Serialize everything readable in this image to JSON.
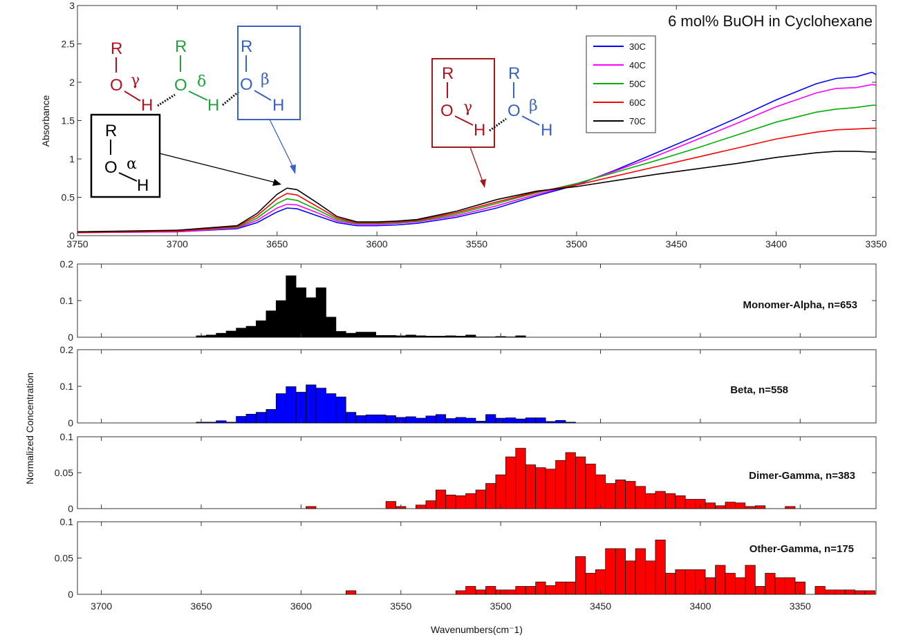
{
  "chart_data": [
    {
      "type": "line",
      "title": "6 mol% BuOH in Cyclohexane",
      "xlabel": "",
      "ylabel": "Absorbance",
      "xlim": [
        3750,
        3350
      ],
      "ylim": [
        0,
        3
      ],
      "x_ticks": [
        "3750",
        "3700",
        "3650",
        "3600",
        "3550",
        "3500",
        "3450",
        "3400",
        "3350"
      ],
      "y_ticks": [
        "0",
        "0.5",
        "1",
        "1.5",
        "2",
        "2.5",
        "3"
      ],
      "legend": [
        "30C",
        "40C",
        "50C",
        "60C",
        "70C"
      ],
      "series": [
        {
          "name": "30C",
          "color": "#0000ff",
          "x": [
            3750,
            3700,
            3670,
            3660,
            3650,
            3645,
            3640,
            3630,
            3620,
            3610,
            3600,
            3590,
            3580,
            3560,
            3540,
            3520,
            3500,
            3480,
            3460,
            3440,
            3420,
            3400,
            3380,
            3370,
            3360,
            3352,
            3350
          ],
          "y": [
            0.04,
            0.05,
            0.09,
            0.17,
            0.31,
            0.36,
            0.35,
            0.26,
            0.17,
            0.13,
            0.13,
            0.14,
            0.16,
            0.24,
            0.36,
            0.52,
            0.66,
            0.86,
            1.08,
            1.3,
            1.53,
            1.77,
            1.98,
            2.05,
            2.07,
            2.13,
            2.1
          ]
        },
        {
          "name": "40C",
          "color": "#ff00ff",
          "x": [
            3750,
            3700,
            3670,
            3660,
            3650,
            3645,
            3640,
            3630,
            3620,
            3610,
            3600,
            3590,
            3580,
            3560,
            3540,
            3520,
            3500,
            3480,
            3460,
            3440,
            3420,
            3400,
            3380,
            3370,
            3360,
            3352,
            3350
          ],
          "y": [
            0.04,
            0.05,
            0.1,
            0.2,
            0.36,
            0.41,
            0.4,
            0.3,
            0.19,
            0.15,
            0.15,
            0.16,
            0.18,
            0.26,
            0.39,
            0.54,
            0.67,
            0.85,
            1.04,
            1.25,
            1.46,
            1.68,
            1.86,
            1.92,
            1.93,
            1.97,
            1.96
          ]
        },
        {
          "name": "50C",
          "color": "#00b000",
          "x": [
            3750,
            3700,
            3670,
            3660,
            3650,
            3645,
            3640,
            3630,
            3620,
            3610,
            3600,
            3590,
            3580,
            3560,
            3540,
            3520,
            3500,
            3480,
            3460,
            3440,
            3420,
            3400,
            3380,
            3370,
            3360,
            3352,
            3350
          ],
          "y": [
            0.04,
            0.06,
            0.11,
            0.23,
            0.42,
            0.48,
            0.46,
            0.34,
            0.21,
            0.16,
            0.16,
            0.17,
            0.19,
            0.28,
            0.42,
            0.56,
            0.68,
            0.83,
            0.98,
            1.14,
            1.31,
            1.48,
            1.61,
            1.65,
            1.67,
            1.7,
            1.7
          ]
        },
        {
          "name": "60C",
          "color": "#ff0000",
          "x": [
            3750,
            3700,
            3670,
            3660,
            3650,
            3645,
            3640,
            3630,
            3620,
            3610,
            3600,
            3590,
            3580,
            3560,
            3540,
            3520,
            3500,
            3480,
            3460,
            3440,
            3420,
            3400,
            3380,
            3370,
            3360,
            3352,
            3350
          ],
          "y": [
            0.04,
            0.06,
            0.12,
            0.26,
            0.48,
            0.55,
            0.53,
            0.38,
            0.23,
            0.17,
            0.17,
            0.18,
            0.2,
            0.3,
            0.44,
            0.57,
            0.66,
            0.78,
            0.9,
            1.02,
            1.14,
            1.26,
            1.35,
            1.38,
            1.39,
            1.4,
            1.4
          ]
        },
        {
          "name": "70C",
          "color": "#000000",
          "x": [
            3750,
            3700,
            3670,
            3660,
            3650,
            3645,
            3640,
            3630,
            3620,
            3610,
            3600,
            3590,
            3580,
            3560,
            3540,
            3520,
            3500,
            3480,
            3460,
            3440,
            3420,
            3400,
            3380,
            3370,
            3360,
            3352,
            3350
          ],
          "y": [
            0.05,
            0.07,
            0.13,
            0.29,
            0.54,
            0.62,
            0.6,
            0.43,
            0.25,
            0.18,
            0.18,
            0.19,
            0.21,
            0.32,
            0.47,
            0.58,
            0.64,
            0.72,
            0.8,
            0.87,
            0.94,
            1.02,
            1.08,
            1.1,
            1.1,
            1.09,
            1.09
          ]
        }
      ]
    },
    {
      "type": "bar",
      "label": "Monomer-Alpha, n=653",
      "color": "#000000",
      "xlim": [
        3712,
        3312
      ],
      "ylim": [
        0,
        0.2
      ],
      "y_ticks": [
        "0",
        "0.1",
        "0.2"
      ],
      "x": [
        3650,
        3645,
        3640,
        3635,
        3630,
        3625,
        3620,
        3615,
        3610,
        3605,
        3600,
        3595,
        3590,
        3585,
        3580,
        3575,
        3570,
        3565,
        3560,
        3555,
        3550,
        3545,
        3540,
        3535,
        3530,
        3525,
        3520,
        3515,
        3510,
        3505,
        3500,
        3495,
        3490
      ],
      "values": [
        0.004,
        0.006,
        0.011,
        0.017,
        0.025,
        0.03,
        0.045,
        0.072,
        0.1,
        0.168,
        0.135,
        0.108,
        0.135,
        0.055,
        0.016,
        0.011,
        0.014,
        0.014,
        0.005,
        0.005,
        0.004,
        0.006,
        0.004,
        0.003,
        0.003,
        0.004,
        0.003,
        0.006,
        0.001,
        0.001,
        0.002,
        0.001,
        0.004
      ]
    },
    {
      "type": "bar",
      "label": "Beta, n=558",
      "color": "#0000ff",
      "xlim": [
        3712,
        3312
      ],
      "ylim": [
        0,
        0.2
      ],
      "y_ticks": [
        "0",
        "0.1",
        "0.2"
      ],
      "x": [
        3650,
        3645,
        3640,
        3635,
        3630,
        3625,
        3620,
        3615,
        3610,
        3605,
        3600,
        3595,
        3590,
        3585,
        3580,
        3575,
        3570,
        3565,
        3560,
        3555,
        3550,
        3545,
        3540,
        3535,
        3530,
        3525,
        3520,
        3515,
        3510,
        3505,
        3500,
        3495,
        3490,
        3485,
        3480,
        3475,
        3470,
        3465
      ],
      "values": [
        0.002,
        0.002,
        0.006,
        0.002,
        0.018,
        0.024,
        0.029,
        0.037,
        0.08,
        0.099,
        0.084,
        0.104,
        0.095,
        0.08,
        0.071,
        0.029,
        0.02,
        0.022,
        0.022,
        0.02,
        0.015,
        0.017,
        0.013,
        0.019,
        0.023,
        0.012,
        0.015,
        0.013,
        0.005,
        0.023,
        0.013,
        0.014,
        0.011,
        0.014,
        0.014,
        0.004,
        0.007,
        0.002
      ]
    },
    {
      "type": "bar",
      "label": "Dimer-Gamma, n=383",
      "color": "#ff0000",
      "xlim": [
        3712,
        3312
      ],
      "ylim": [
        0,
        0.1
      ],
      "y_ticks": [
        "0",
        "0.05",
        "0.1"
      ],
      "x": [
        3595,
        3555,
        3550,
        3540,
        3535,
        3530,
        3525,
        3520,
        3515,
        3510,
        3505,
        3500,
        3495,
        3490,
        3485,
        3480,
        3475,
        3470,
        3465,
        3460,
        3455,
        3450,
        3445,
        3440,
        3435,
        3430,
        3425,
        3420,
        3415,
        3410,
        3405,
        3400,
        3395,
        3390,
        3385,
        3380,
        3375,
        3370,
        3355
      ],
      "values": [
        0.003,
        0.01,
        0.003,
        0.005,
        0.011,
        0.026,
        0.019,
        0.018,
        0.021,
        0.026,
        0.035,
        0.047,
        0.072,
        0.084,
        0.061,
        0.057,
        0.055,
        0.067,
        0.078,
        0.072,
        0.062,
        0.047,
        0.035,
        0.04,
        0.038,
        0.031,
        0.021,
        0.024,
        0.021,
        0.018,
        0.013,
        0.013,
        0.008,
        0.004,
        0.009,
        0.008,
        0.003,
        0.004,
        0.003
      ]
    },
    {
      "type": "bar",
      "label": "Other-Gamma, n=175",
      "color": "#ff0000",
      "xlim": [
        3712,
        3312
      ],
      "ylim": [
        0,
        0.1
      ],
      "y_ticks": [
        "0",
        "0.05",
        "0.1"
      ],
      "x_ticks": [
        "3700",
        "3650",
        "3600",
        "3550",
        "3500",
        "3450",
        "3400",
        "3350"
      ],
      "xlabel": "Wavenumbers(cm⁻1)",
      "x": [
        3575,
        3520,
        3515,
        3510,
        3505,
        3500,
        3495,
        3490,
        3485,
        3480,
        3475,
        3470,
        3465,
        3460,
        3455,
        3450,
        3445,
        3440,
        3435,
        3430,
        3425,
        3420,
        3415,
        3410,
        3405,
        3400,
        3395,
        3390,
        3385,
        3380,
        3375,
        3370,
        3365,
        3360,
        3355,
        3350,
        3340,
        3335,
        3330,
        3325,
        3320,
        3315
      ],
      "values": [
        0.005,
        0.005,
        0.011,
        0.006,
        0.011,
        0.006,
        0.006,
        0.011,
        0.011,
        0.017,
        0.012,
        0.017,
        0.017,
        0.052,
        0.029,
        0.034,
        0.063,
        0.063,
        0.046,
        0.063,
        0.046,
        0.075,
        0.029,
        0.034,
        0.034,
        0.034,
        0.023,
        0.04,
        0.029,
        0.023,
        0.04,
        0.011,
        0.029,
        0.023,
        0.023,
        0.017,
        0.011,
        0.006,
        0.006,
        0.006,
        0.005,
        0.005
      ]
    }
  ],
  "axis_label_left": "Normalized Concentration",
  "annotations": {
    "alpha": {
      "R": "R",
      "O": "O",
      "H": "H",
      "greek": "α"
    },
    "beta_chain": {
      "R1": "R",
      "O1": "O",
      "H1": "H",
      "g1": "γ",
      "R2": "R",
      "O2": "O",
      "H2": "H",
      "g2": "δ",
      "R3": "R",
      "O3": "O",
      "H3": "H",
      "g3": "β"
    },
    "gamma_pair": {
      "R1": "R",
      "O1": "O",
      "H1": "H",
      "g1": "γ",
      "R2": "R",
      "O2": "O",
      "H2": "H",
      "g2": "β"
    }
  },
  "colors": {
    "dark_red": "#b01020",
    "green": "#20a040",
    "blue": "#3a62c0",
    "black": "#000000"
  }
}
